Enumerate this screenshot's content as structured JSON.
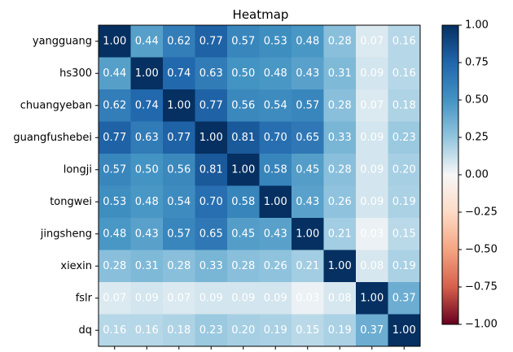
{
  "chart_data": {
    "type": "heatmap",
    "title": "Heatmap",
    "labels": [
      "yangguang",
      "hs300",
      "chuangyeban",
      "guangfushebei",
      "longji",
      "tongwei",
      "jingsheng",
      "xiexin",
      "fslr",
      "dq"
    ],
    "matrix": [
      [
        1.0,
        0.44,
        0.62,
        0.77,
        0.57,
        0.53,
        0.48,
        0.28,
        0.07,
        0.16
      ],
      [
        0.44,
        1.0,
        0.74,
        0.63,
        0.5,
        0.48,
        0.43,
        0.31,
        0.09,
        0.16
      ],
      [
        0.62,
        0.74,
        1.0,
        0.77,
        0.56,
        0.54,
        0.57,
        0.28,
        0.07,
        0.18
      ],
      [
        0.77,
        0.63,
        0.77,
        1.0,
        0.81,
        0.7,
        0.65,
        0.33,
        0.09,
        0.23
      ],
      [
        0.57,
        0.5,
        0.56,
        0.81,
        1.0,
        0.58,
        0.45,
        0.28,
        0.09,
        0.2
      ],
      [
        0.53,
        0.48,
        0.54,
        0.7,
        0.58,
        1.0,
        0.43,
        0.26,
        0.09,
        0.19
      ],
      [
        0.48,
        0.43,
        0.57,
        0.65,
        0.45,
        0.43,
        1.0,
        0.21,
        0.03,
        0.15
      ],
      [
        0.28,
        0.31,
        0.28,
        0.33,
        0.28,
        0.26,
        0.21,
        1.0,
        0.08,
        0.19
      ],
      [
        0.07,
        0.09,
        0.07,
        0.09,
        0.09,
        0.09,
        0.03,
        0.08,
        1.0,
        0.37
      ],
      [
        0.16,
        0.16,
        0.18,
        0.23,
        0.2,
        0.19,
        0.15,
        0.19,
        0.37,
        1.0
      ]
    ],
    "colormap": "RdBu",
    "vmin": -1.0,
    "vmax": 1.0,
    "colorbar_ticks": [
      "1.00",
      "0.75",
      "0.50",
      "0.25",
      "0.00",
      "−0.25",
      "−0.50",
      "−0.75",
      "−1.00"
    ],
    "colorbar_tick_values": [
      1.0,
      0.75,
      0.5,
      0.25,
      0.0,
      -0.25,
      -0.5,
      -0.75,
      -1.0
    ]
  }
}
